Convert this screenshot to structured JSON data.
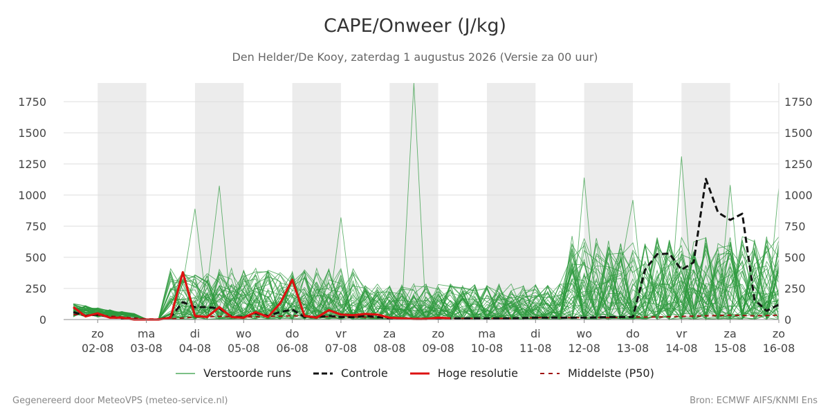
{
  "header": {
    "title": "CAPE/Onweer (J/kg)",
    "subtitle": "Den Helder/De Kooy, zaterdag  1 augustus 2026 (Versie za 00 uur)"
  },
  "footer": {
    "left": "Gegenereerd door MeteoVPS (meteo-service.nl)",
    "right": "Bron: ECMWF AIFS/KNMI Ens"
  },
  "colors": {
    "ensemble": "#2e9a3e",
    "control": "#111111",
    "high_res": "#dd1111",
    "median": "#a01010",
    "weekend_band": "#ececec",
    "grid": "#dddddd"
  },
  "legend": {
    "ensemble": "Verstoorde runs",
    "control": "Controle",
    "high_res": "Hoge resolutie",
    "median": "Middelste (P50)"
  },
  "chart_data": {
    "type": "line",
    "y_ticks": [
      0,
      250,
      500,
      750,
      1000,
      1250,
      1500,
      1750
    ],
    "ylim": [
      0,
      1900
    ],
    "x_day_range": [
      1.3,
      16.0
    ],
    "x_ticks": [
      {
        "day": 2,
        "weekday": "zo",
        "date": "02-08"
      },
      {
        "day": 3,
        "weekday": "ma",
        "date": "03-08"
      },
      {
        "day": 4,
        "weekday": "di",
        "date": "04-08"
      },
      {
        "day": 5,
        "weekday": "wo",
        "date": "05-08"
      },
      {
        "day": 6,
        "weekday": "do",
        "date": "06-08"
      },
      {
        "day": 7,
        "weekday": "vr",
        "date": "07-08"
      },
      {
        "day": 8,
        "weekday": "za",
        "date": "08-08"
      },
      {
        "day": 9,
        "weekday": "zo",
        "date": "09-08"
      },
      {
        "day": 10,
        "weekday": "ma",
        "date": "10-08"
      },
      {
        "day": 11,
        "weekday": "di",
        "date": "11-08"
      },
      {
        "day": 12,
        "weekday": "wo",
        "date": "12-08"
      },
      {
        "day": 13,
        "weekday": "do",
        "date": "13-08"
      },
      {
        "day": 14,
        "weekday": "vr",
        "date": "14-08"
      },
      {
        "day": 15,
        "weekday": "za",
        "date": "15-08"
      },
      {
        "day": 16,
        "weekday": "zo",
        "date": "16-08"
      }
    ],
    "shaded_days": [
      [
        2.0,
        3.0
      ],
      [
        4.0,
        5.0
      ],
      [
        6.0,
        7.0
      ],
      [
        8.0,
        9.0
      ],
      [
        10.0,
        11.0
      ],
      [
        12.0,
        13.0
      ],
      [
        14.0,
        15.0
      ]
    ],
    "series": [
      {
        "name": "Controle",
        "style": "dashed",
        "x": [
          1.5,
          1.75,
          2.0,
          2.25,
          2.5,
          2.75,
          3.0,
          3.25,
          3.5,
          3.75,
          4.0,
          4.25,
          4.5,
          4.75,
          5.0,
          5.25,
          5.5,
          5.75,
          6.0,
          6.25,
          6.5,
          6.75,
          7.0,
          7.25,
          7.5,
          7.75,
          8.0,
          8.25,
          8.5,
          8.75,
          9.0,
          9.5,
          10.0,
          10.5,
          11.0,
          11.5,
          12.0,
          12.5,
          13.0,
          13.25,
          13.5,
          13.75,
          14.0,
          14.25,
          14.5,
          14.75,
          15.0,
          15.25,
          15.5,
          15.75,
          16.0
        ],
        "y": [
          60,
          30,
          40,
          20,
          10,
          5,
          0,
          0,
          20,
          140,
          100,
          100,
          90,
          25,
          20,
          50,
          30,
          60,
          80,
          20,
          20,
          30,
          20,
          20,
          30,
          20,
          10,
          10,
          5,
          5,
          10,
          10,
          10,
          10,
          15,
          15,
          15,
          20,
          20,
          400,
          525,
          530,
          400,
          460,
          1130,
          860,
          800,
          850,
          160,
          70,
          120
        ]
      },
      {
        "name": "Hoge resolutie",
        "style": "solid",
        "x": [
          1.5,
          1.75,
          2.0,
          2.25,
          2.5,
          2.75,
          3.0,
          3.25,
          3.5,
          3.75,
          4.0,
          4.25,
          4.5,
          4.75,
          5.0,
          5.25,
          5.5,
          5.75,
          6.0,
          6.25,
          6.5,
          6.75,
          7.0,
          7.25,
          7.5,
          7.75,
          8.0,
          8.25,
          8.5,
          8.75,
          9.0,
          9.25
        ],
        "y": [
          100,
          25,
          50,
          15,
          15,
          0,
          0,
          0,
          15,
          380,
          30,
          20,
          100,
          20,
          15,
          60,
          20,
          130,
          320,
          30,
          15,
          75,
          40,
          35,
          45,
          40,
          15,
          10,
          5,
          5,
          15,
          10
        ]
      },
      {
        "name": "Middelste (P50)",
        "style": "dashed",
        "x": [
          1.5,
          2.0,
          2.5,
          3.0,
          3.5,
          4.0,
          4.5,
          5.0,
          5.5,
          6.0,
          6.5,
          7.0,
          7.5,
          8.0,
          8.5,
          9.0,
          9.5,
          10.0,
          10.5,
          11.0,
          11.5,
          12.0,
          12.5,
          13.0,
          13.5,
          14.0,
          14.5,
          15.0,
          15.5,
          16.0
        ],
        "y": [
          40,
          35,
          20,
          5,
          5,
          20,
          25,
          20,
          25,
          30,
          25,
          20,
          20,
          15,
          10,
          10,
          10,
          10,
          10,
          15,
          15,
          15,
          15,
          20,
          20,
          25,
          30,
          35,
          30,
          35
        ]
      }
    ],
    "ensemble_members": [
      {
        "day": 4.0,
        "peak": 890
      },
      {
        "day": 4.5,
        "peak": 1075
      },
      {
        "day": 7.0,
        "peak": 820
      },
      {
        "day": 8.5,
        "peak": 1900
      },
      {
        "day": 12.0,
        "peak": 1140
      },
      {
        "day": 13.0,
        "peak": 960
      },
      {
        "day": 14.0,
        "peak": 1310
      },
      {
        "day": 15.0,
        "peak": 1080
      },
      {
        "day": 16.0,
        "peak": 1060
      }
    ]
  }
}
